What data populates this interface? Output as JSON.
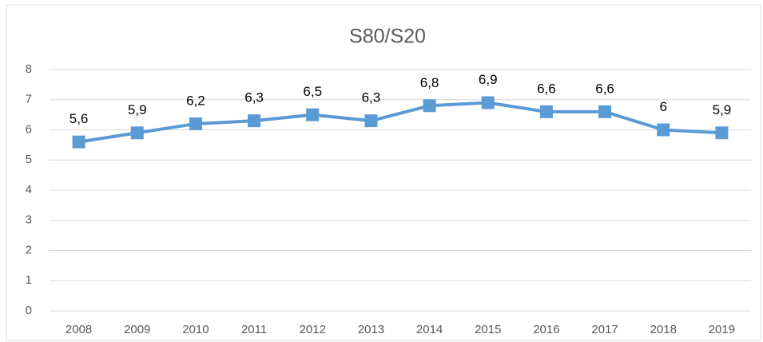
{
  "chart_data": {
    "type": "line",
    "title": "S80/S20",
    "categories": [
      "2008",
      "2009",
      "2010",
      "2011",
      "2012",
      "2013",
      "2014",
      "2015",
      "2016",
      "2017",
      "2018",
      "2019"
    ],
    "values": [
      5.6,
      5.9,
      6.2,
      6.3,
      6.5,
      6.3,
      6.8,
      6.9,
      6.6,
      6.6,
      6,
      5.9
    ],
    "value_labels": [
      "5,6",
      "5,9",
      "6,2",
      "6,3",
      "6,5",
      "6,3",
      "6,8",
      "6,9",
      "6,6",
      "6,6",
      "6",
      "5,9"
    ],
    "color": "#5b9bd5",
    "ylim": [
      0,
      8
    ],
    "yticks": [
      0,
      1,
      2,
      3,
      4,
      5,
      6,
      7,
      8
    ],
    "grid": true
  }
}
